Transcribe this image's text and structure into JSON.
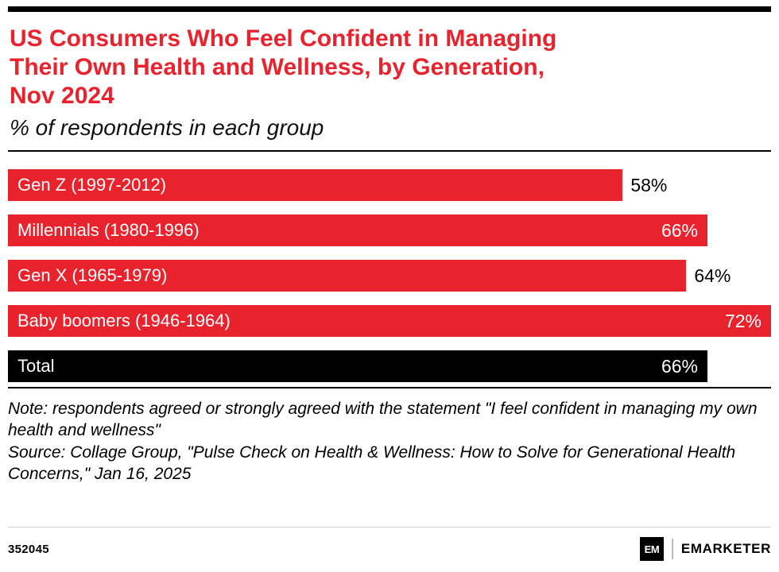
{
  "header": {
    "title": "US Consumers Who Feel Confident in Managing Their Own Health and Wellness, by Generation, Nov 2024",
    "title_lines": [
      "US Consumers Who Feel Confident in Managing",
      "Their Own Health and Wellness, by Generation,",
      "Nov 2024"
    ],
    "subtitle": "% of respondents in each group"
  },
  "chart_data": {
    "type": "bar",
    "orientation": "horizontal",
    "title": "US Consumers Who Feel Confident in Managing Their Own Health and Wellness, by Generation, Nov 2024",
    "subtitle": "% of respondents in each group",
    "categories": [
      "Gen Z (1997-2012)",
      "Millennials (1980-1996)",
      "Gen X (1965-1979)",
      "Baby boomers (1946-1964)",
      "Total"
    ],
    "values": [
      58,
      66,
      64,
      72,
      66
    ],
    "value_labels": [
      "58%",
      "66%",
      "64%",
      "72%",
      "66%"
    ],
    "bar_colors": [
      "#e9232d",
      "#e9232d",
      "#e9232d",
      "#e9232d",
      "#000000"
    ],
    "label_inside": [
      false,
      true,
      false,
      true,
      true
    ],
    "xlim": [
      0,
      72
    ],
    "xlabel": "",
    "ylabel": "",
    "grid": false,
    "legend": "none"
  },
  "notes": {
    "note": "Note: respondents agreed or strongly agreed with the statement \"I feel confident in managing my own health and wellness\"",
    "source": "Source: Collage Group, \"Pulse Check on Health & Wellness: How to Solve for Generational Health Concerns,\" Jan 16, 2025"
  },
  "footer": {
    "chart_number": "352045",
    "logo_mark": "EM",
    "brand": "EMARKETER"
  },
  "colors": {
    "accent_red": "#e9232d",
    "bar_black": "#000000"
  }
}
